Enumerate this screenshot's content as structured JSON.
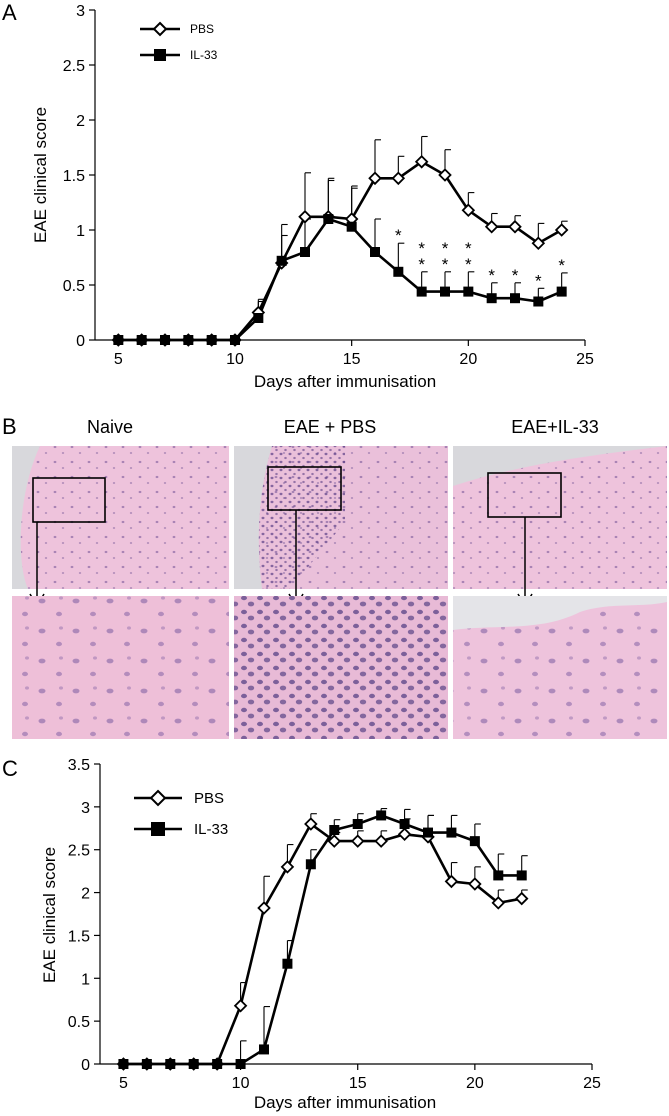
{
  "figure": {
    "panels": [
      "A",
      "B",
      "C"
    ]
  },
  "panel_b": {
    "columns": [
      "Naive",
      "EAE + PBS",
      "EAE+IL-33"
    ],
    "colors": {
      "tissue": "#e9b9d6",
      "tissue_dark": "#d99fc4",
      "nuclei": "#6f4f93",
      "background": "#d8d8dc"
    }
  },
  "chart_data": [
    {
      "panel": "A",
      "type": "line",
      "xlabel": "Days after immunisation",
      "ylabel": "EAE clinical score",
      "xlim": [
        4,
        25
      ],
      "ylim": [
        0,
        3
      ],
      "xticks": [
        "5",
        "10",
        "15",
        "20",
        "25"
      ],
      "yticks": [
        "0",
        "0.5",
        "1",
        "1.5",
        "2",
        "2.5",
        "3"
      ],
      "legend_placement": "top-left",
      "grid": false,
      "series": [
        {
          "name": "PBS",
          "marker": "open-diamond",
          "x": [
            5,
            6,
            7,
            8,
            9,
            10,
            11,
            12,
            13,
            14,
            15,
            16,
            17,
            18,
            19,
            20,
            21,
            22,
            23,
            24
          ],
          "y": [
            0,
            0,
            0,
            0,
            0,
            0,
            0.25,
            0.7,
            1.12,
            1.12,
            1.1,
            1.47,
            1.47,
            1.62,
            1.5,
            1.18,
            1.03,
            1.03,
            0.88,
            1.0
          ],
          "err": [
            0,
            0,
            0,
            0,
            0,
            0,
            0.12,
            0.25,
            0.4,
            0.35,
            0.3,
            0.35,
            0.2,
            0.23,
            0.23,
            0.16,
            0.12,
            0.1,
            0.18,
            0.08
          ]
        },
        {
          "name": "IL-33",
          "marker": "filled-square",
          "x": [
            5,
            6,
            7,
            8,
            9,
            10,
            11,
            12,
            13,
            14,
            15,
            16,
            17,
            18,
            19,
            20,
            21,
            22,
            23,
            24
          ],
          "y": [
            0,
            0,
            0,
            0,
            0,
            0,
            0.2,
            0.72,
            0.8,
            1.1,
            1.03,
            0.8,
            0.62,
            0.44,
            0.44,
            0.44,
            0.38,
            0.38,
            0.35,
            0.44
          ],
          "err": [
            0,
            0,
            0,
            0,
            0,
            0,
            0.15,
            0.33,
            0.3,
            0.35,
            0.35,
            0.3,
            0.26,
            0.18,
            0.18,
            0.18,
            0.14,
            0.14,
            0.12,
            0.17
          ]
        }
      ],
      "annotations": [
        {
          "x": 17,
          "text": "*"
        },
        {
          "x": 18,
          "text": "**"
        },
        {
          "x": 19,
          "text": "**"
        },
        {
          "x": 20,
          "text": "**"
        },
        {
          "x": 21,
          "text": "*"
        },
        {
          "x": 22,
          "text": "*"
        },
        {
          "x": 23,
          "text": "*"
        },
        {
          "x": 24,
          "text": "*"
        }
      ]
    },
    {
      "panel": "C",
      "type": "line",
      "xlabel": "Days after immunisation",
      "ylabel": "EAE clinical score",
      "xlim": [
        4,
        25
      ],
      "ylim": [
        0,
        3.5
      ],
      "xticks": [
        "5",
        "10",
        "15",
        "20",
        "25"
      ],
      "yticks": [
        "0",
        "0.5",
        "1",
        "1.5",
        "2",
        "2.5",
        "3",
        "3.5"
      ],
      "legend_placement": "top-left",
      "grid": false,
      "series": [
        {
          "name": "PBS",
          "marker": "open-diamond",
          "x": [
            5,
            6,
            7,
            8,
            9,
            10,
            11,
            12,
            13,
            14,
            15,
            16,
            17,
            18,
            19,
            20,
            21,
            22
          ],
          "y": [
            0,
            0,
            0,
            0,
            0,
            0.68,
            1.82,
            2.3,
            2.8,
            2.6,
            2.6,
            2.6,
            2.68,
            2.65,
            2.13,
            2.1,
            1.88,
            1.93
          ],
          "err": [
            0,
            0,
            0,
            0,
            0,
            0.27,
            0.37,
            0.26,
            0.12,
            0.1,
            0.12,
            0.12,
            0.18,
            0.25,
            0.22,
            0.2,
            0.15,
            0.1
          ]
        },
        {
          "name": "IL-33",
          "marker": "filled-square",
          "x": [
            5,
            6,
            7,
            8,
            9,
            10,
            11,
            12,
            13,
            14,
            15,
            16,
            17,
            18,
            19,
            20,
            21,
            22
          ],
          "y": [
            0,
            0,
            0,
            0,
            0,
            0,
            0.17,
            1.17,
            2.33,
            2.73,
            2.8,
            2.9,
            2.8,
            2.7,
            2.7,
            2.6,
            2.2,
            2.2
          ],
          "err": [
            0,
            0,
            0,
            0,
            0,
            0.27,
            0.5,
            0.27,
            0.17,
            0.12,
            0.12,
            0.08,
            0.17,
            0.2,
            0.2,
            0.2,
            0.25,
            0.23
          ]
        }
      ]
    }
  ]
}
